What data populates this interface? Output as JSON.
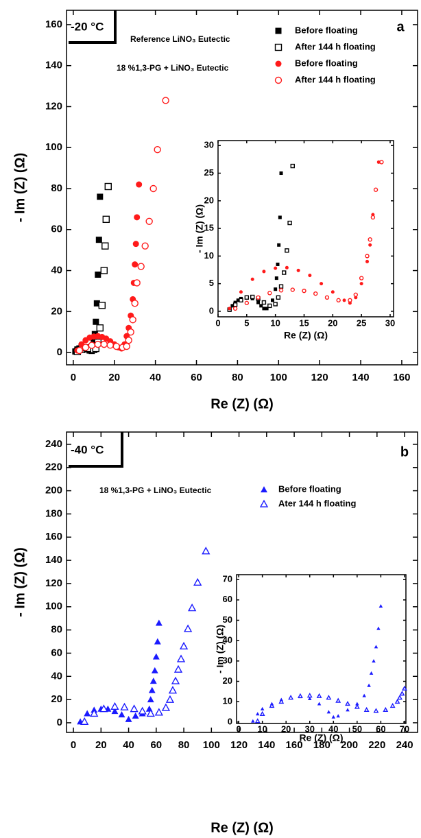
{
  "chart_data": [
    {
      "type": "scatter",
      "panel_label": "a",
      "temperature": "-20 °C",
      "x_label": "Re (Z) (Ω)",
      "y_label": "- Im (Z) (Ω)",
      "xlim": [
        -3.3,
        167.7
      ],
      "ylim": [
        -6,
        167
      ],
      "xticks": [
        0,
        20,
        40,
        60,
        80,
        100,
        120,
        140,
        160
      ],
      "yticks": [
        0,
        20,
        40,
        60,
        80,
        100,
        120,
        140,
        160
      ],
      "legend_groups": [
        {
          "label": "Reference LiNO₃ Eutectic",
          "color": "#000000"
        },
        {
          "label": "18 %1,3-PG + LiNO₃ Eutectic",
          "color": "#ff1a1a"
        }
      ],
      "series": [
        {
          "name": "Before floating",
          "color": "#000000",
          "marker": "square",
          "filled": true,
          "x": [
            1,
            2,
            3,
            4,
            5,
            6,
            7,
            8,
            9,
            9.5,
            10,
            10.5,
            11,
            11.5,
            12,
            12.5,
            13
          ],
          "values": [
            0.5,
            1.5,
            2,
            2.3,
            2.3,
            2,
            1.5,
            1,
            0.8,
            2,
            5,
            9,
            15,
            24,
            38,
            55,
            76
          ]
        },
        {
          "name": "After 144 h floating",
          "color": "#000000",
          "marker": "square",
          "filled": false,
          "x": [
            2,
            4,
            6,
            8,
            10,
            11,
            12,
            13,
            14,
            15,
            15.5,
            16,
            17
          ],
          "values": [
            0.5,
            1.5,
            2.3,
            2,
            1.5,
            2,
            5,
            12,
            23,
            40,
            52,
            65,
            81
          ]
        },
        {
          "name": "Before floating",
          "color": "#ff1a1a",
          "marker": "circle",
          "filled": true,
          "x": [
            2,
            4,
            6,
            8,
            10,
            12,
            14,
            16,
            18,
            20,
            22,
            23.5,
            25,
            26,
            27,
            28,
            29,
            29.5,
            30,
            30.5,
            31,
            32
          ],
          "values": [
            1,
            4,
            6,
            7.3,
            7.8,
            8,
            7.6,
            6.8,
            5.5,
            4,
            2.5,
            2,
            4,
            8,
            12,
            18,
            26,
            34,
            43,
            53,
            66,
            82
          ]
        },
        {
          "name": "After 144 h floating",
          "color": "#ff1a1a",
          "marker": "circle",
          "filled": false,
          "x": [
            3,
            6,
            9,
            12,
            15,
            18,
            21,
            24,
            26,
            27,
            28,
            29,
            30,
            31,
            33,
            35,
            37,
            39,
            41,
            45
          ],
          "values": [
            1,
            2.5,
            3.5,
            4,
            4,
            3.6,
            3,
            2.5,
            3,
            6,
            10,
            16,
            24,
            34,
            42,
            52,
            64,
            80,
            99,
            123
          ]
        }
      ]
    },
    {
      "type": "scatter",
      "x_label": "Re (Z) (Ω)",
      "y_label": "- Im (Z) (Ω)",
      "xlim": [
        0,
        30.6
      ],
      "ylim": [
        -1,
        30.9
      ],
      "xticks": [
        0,
        5,
        10,
        15,
        20,
        25,
        30
      ],
      "yticks": [
        0,
        5,
        10,
        15,
        20,
        25,
        30
      ],
      "series": [
        {
          "color": "#000000",
          "marker": "square",
          "filled": true,
          "x": [
            2,
            2.5,
            3,
            3.5,
            4,
            5,
            6,
            7,
            7.5,
            8,
            8.5,
            9,
            9.5,
            10,
            10.2,
            10.4,
            10.6,
            10.8,
            11
          ],
          "values": [
            0.2,
            1,
            1.6,
            2,
            2.3,
            2.5,
            2.3,
            1.6,
            1,
            0.5,
            0.5,
            1,
            2,
            4,
            6,
            8.5,
            12,
            17,
            25
          ]
        },
        {
          "color": "#000000",
          "marker": "square",
          "filled": false,
          "x": [
            2,
            3,
            4,
            5,
            6,
            7,
            8,
            9,
            10,
            10.5,
            11,
            11.5,
            12,
            12.5,
            13
          ],
          "values": [
            0.3,
            1.2,
            2,
            2.5,
            2.6,
            2.3,
            1.6,
            1,
            1.3,
            2.5,
            4.5,
            7,
            11,
            16,
            26.3
          ]
        },
        {
          "color": "#ff1a1a",
          "marker": "circle",
          "filled": true,
          "x": [
            2,
            4,
            6,
            8,
            10,
            12,
            14,
            16,
            18,
            20,
            22,
            23,
            24,
            25,
            26,
            26.5,
            27,
            27.5,
            28
          ],
          "values": [
            0.5,
            3.5,
            5.8,
            7.2,
            7.8,
            7.9,
            7.4,
            6.5,
            5,
            3.5,
            2,
            1.5,
            2.5,
            5,
            9,
            12,
            17.5,
            22,
            27
          ]
        },
        {
          "color": "#ff1a1a",
          "marker": "circle",
          "filled": false,
          "x": [
            3,
            5,
            7,
            9,
            11,
            13,
            15,
            17,
            19,
            21,
            23,
            24,
            25,
            26,
            26.5,
            27,
            27.5,
            28.5
          ],
          "values": [
            0.5,
            1.5,
            2.5,
            3.3,
            3.8,
            3.9,
            3.7,
            3.2,
            2.5,
            2,
            2,
            3,
            6,
            10,
            13,
            17,
            22,
            27
          ]
        }
      ]
    },
    {
      "type": "scatter",
      "panel_label": "b",
      "temperature": "-40 °C",
      "x_label": "Re (Z) (Ω)",
      "y_label": "- Im (Z) (Ω)",
      "xlim": [
        -5,
        249.4
      ],
      "ylim": [
        -8.3,
        250.6
      ],
      "xticks": [
        0,
        20,
        40,
        60,
        80,
        100,
        120,
        140,
        160,
        180,
        200,
        220,
        240
      ],
      "yticks": [
        0,
        20,
        40,
        60,
        80,
        100,
        120,
        140,
        160,
        180,
        200,
        220,
        240
      ],
      "legend_groups": [
        {
          "label": "18 %1,3-PG + LiNO₃ Eutectic",
          "color": "#000000"
        }
      ],
      "series": [
        {
          "name": "Before floating",
          "color": "#1a1aff",
          "marker": "triangle",
          "filled": true,
          "x": [
            5,
            10,
            15,
            20,
            25,
            30,
            35,
            40,
            45,
            50,
            55,
            56,
            57,
            58,
            59,
            60,
            61,
            62
          ],
          "values": [
            1,
            8,
            11,
            12,
            12,
            10,
            7,
            3,
            6,
            8,
            12,
            20,
            28,
            36,
            45,
            57,
            70,
            86
          ]
        },
        {
          "name": "Ater 144 h floating",
          "color": "#1a1aff",
          "marker": "triangle",
          "filled": false,
          "x": [
            8,
            15,
            22,
            30,
            37,
            44,
            50,
            56,
            62,
            67,
            70,
            72,
            74,
            76,
            78,
            80,
            83,
            86,
            90,
            96
          ],
          "values": [
            1,
            8,
            12,
            14,
            13.5,
            12,
            10,
            8,
            9,
            13,
            20,
            28,
            36,
            46,
            55,
            66,
            81,
            99,
            121,
            148
          ]
        }
      ]
    },
    {
      "type": "scatter",
      "x_label": "Re (Z) (Ω)",
      "y_label": "- Im (Z) (Ω)",
      "xlim": [
        -0.9,
        70.6
      ],
      "ylim": [
        -0.7,
        72.4
      ],
      "xticks": [
        0,
        10,
        20,
        30,
        40,
        50,
        60,
        70
      ],
      "yticks": [
        0,
        10,
        20,
        30,
        40,
        50,
        60,
        70
      ],
      "series": [
        {
          "color": "#1a1aff",
          "marker": "triangle",
          "filled": true,
          "x": [
            6,
            8,
            10,
            14,
            18,
            22,
            26,
            30,
            34,
            38,
            40,
            42,
            46,
            50,
            53,
            55,
            56,
            57,
            58,
            59,
            60
          ],
          "values": [
            0.5,
            4,
            6.5,
            9,
            11,
            12,
            12.5,
            11.5,
            9,
            5,
            2.5,
            3,
            6,
            9,
            13,
            18,
            24,
            30,
            37,
            46,
            57
          ]
        },
        {
          "color": "#1a1aff",
          "marker": "triangle",
          "filled": false,
          "x": [
            8,
            10,
            14,
            18,
            22,
            26,
            30,
            34,
            38,
            42,
            46,
            50,
            54,
            58,
            62,
            65,
            67,
            68,
            69,
            70
          ],
          "values": [
            0.5,
            4,
            8,
            10,
            12,
            12.8,
            13,
            12.8,
            12,
            10.5,
            9,
            7.5,
            6,
            5.5,
            6,
            8,
            10,
            12,
            14,
            16.5
          ]
        }
      ]
    }
  ]
}
